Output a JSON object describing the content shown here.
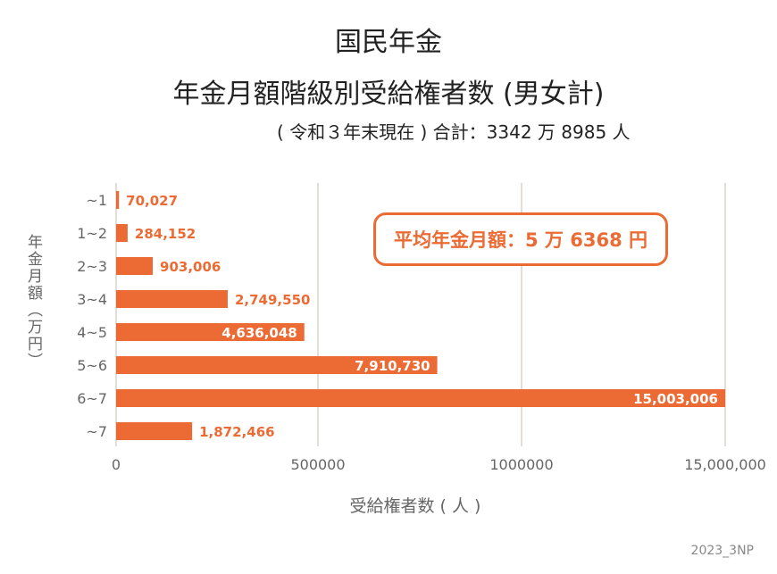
{
  "header": {
    "title_line1": "国民年金",
    "title_line2": "年金月額階級別受給権者数 (男女計)",
    "subtitle": "( 令和３年末現在 ) 合計：3342 万 8985 人"
  },
  "callout": {
    "text": "平均年金月額：5 万 6368 円"
  },
  "credit": "2023_3NP",
  "colors": {
    "bar": "#ec6b35",
    "grid": "#d8d2c8",
    "axis_text": "#666666",
    "label_inside": "#ffffff"
  },
  "chart_data": {
    "type": "bar",
    "orientation": "horizontal",
    "xlabel": "受給権者数 ( 人 )",
    "ylabel": "年金月額（万円）",
    "categories": [
      "~1",
      "1~2",
      "2~3",
      "3~4",
      "4~5",
      "5~6",
      "6~7",
      "~7"
    ],
    "values": [
      70027,
      284152,
      903006,
      2749550,
      4636048,
      7910730,
      15003006,
      1872466
    ],
    "value_labels": [
      "70,027",
      "284,152",
      "903,006",
      "2,749,550",
      "4,636,048",
      "7,910,730",
      "15,003,006",
      "1,872,466"
    ],
    "x_ticks": [
      "0",
      "500000",
      "1000000",
      "15,000,000"
    ],
    "grid": true
  }
}
